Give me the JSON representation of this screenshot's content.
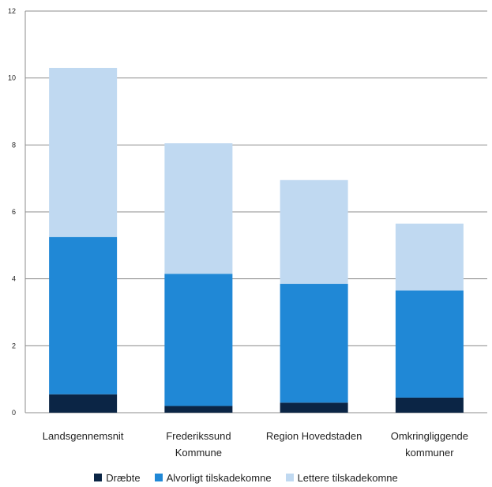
{
  "chart_data": {
    "type": "bar",
    "stacked": true,
    "categories": [
      [
        "Landsgennemsnit"
      ],
      [
        "Frederikssund",
        "Kommune"
      ],
      [
        "Region Hovedstaden"
      ],
      [
        "Omkringliggende",
        "kommuner"
      ]
    ],
    "series": [
      {
        "name": "Dræbte",
        "color": "#0b2545",
        "values": [
          0.55,
          0.2,
          0.3,
          0.45
        ]
      },
      {
        "name": "Alvorligt tilskadekomne",
        "color": "#2088d6",
        "values": [
          4.7,
          3.95,
          3.55,
          3.2
        ]
      },
      {
        "name": "Lettere tilskadekomne",
        "color": "#c0d9f1",
        "values": [
          5.05,
          3.9,
          3.1,
          2.0
        ]
      }
    ],
    "yticks": [
      0,
      2,
      4,
      6,
      8,
      10,
      12
    ],
    "ylim": [
      0,
      12
    ],
    "grid": true,
    "legend_position": "bottom",
    "title": "",
    "xlabel": "",
    "ylabel": ""
  }
}
